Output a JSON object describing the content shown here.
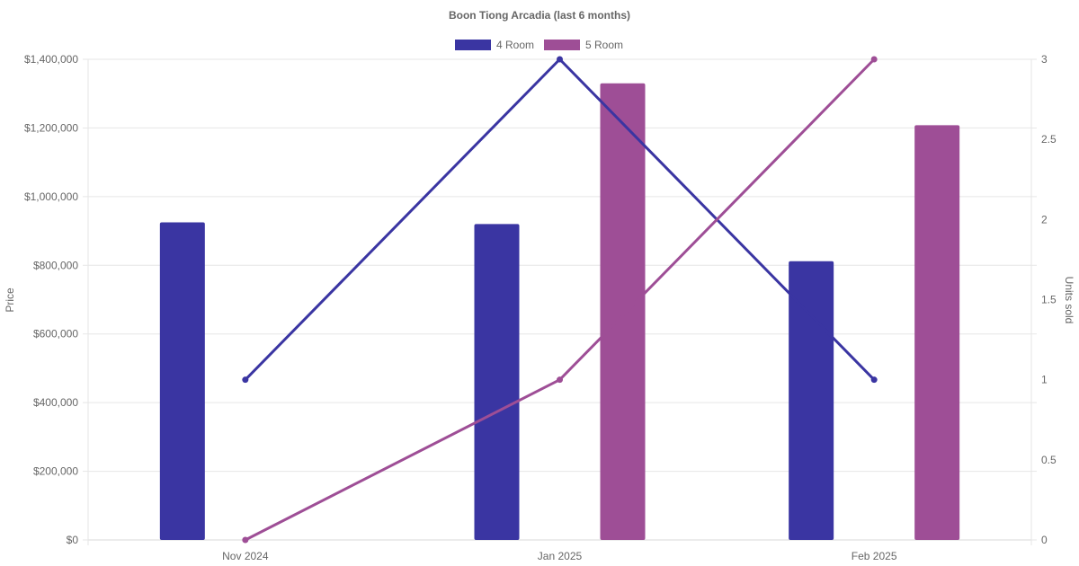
{
  "chart_data": {
    "type": "bar",
    "title": "Boon Tiong Arcadia (last 6 months)",
    "categories": [
      "Nov 2024",
      "Jan 2025",
      "Feb 2025"
    ],
    "y_left": {
      "label": "Price",
      "range": [
        0,
        1400000
      ],
      "ticks": [
        "$0",
        "$200,000",
        "$400,000",
        "$600,000",
        "$800,000",
        "$1,000,000",
        "$1,200,000",
        "$1,400,000"
      ],
      "tick_values": [
        0,
        200000,
        400000,
        600000,
        800000,
        1000000,
        1200000,
        1400000
      ]
    },
    "y_right": {
      "label": "Units sold",
      "range": [
        0,
        3
      ],
      "ticks": [
        "0",
        "0.5",
        "1",
        "1.5",
        "2",
        "2.5",
        "3"
      ],
      "tick_values": [
        0,
        0.5,
        1,
        1.5,
        2,
        2.5,
        3
      ]
    },
    "legend_position": "top-center",
    "grid": true,
    "series": [
      {
        "name": "4 Room",
        "color": "#3a35a2",
        "price_values": [
          925000,
          920000,
          812000
        ],
        "units_values": [
          1,
          3,
          1
        ]
      },
      {
        "name": "5 Room",
        "color": "#9e4e96",
        "price_values": [
          null,
          1330000,
          1208000
        ],
        "units_values": [
          0,
          1,
          3
        ]
      }
    ]
  }
}
